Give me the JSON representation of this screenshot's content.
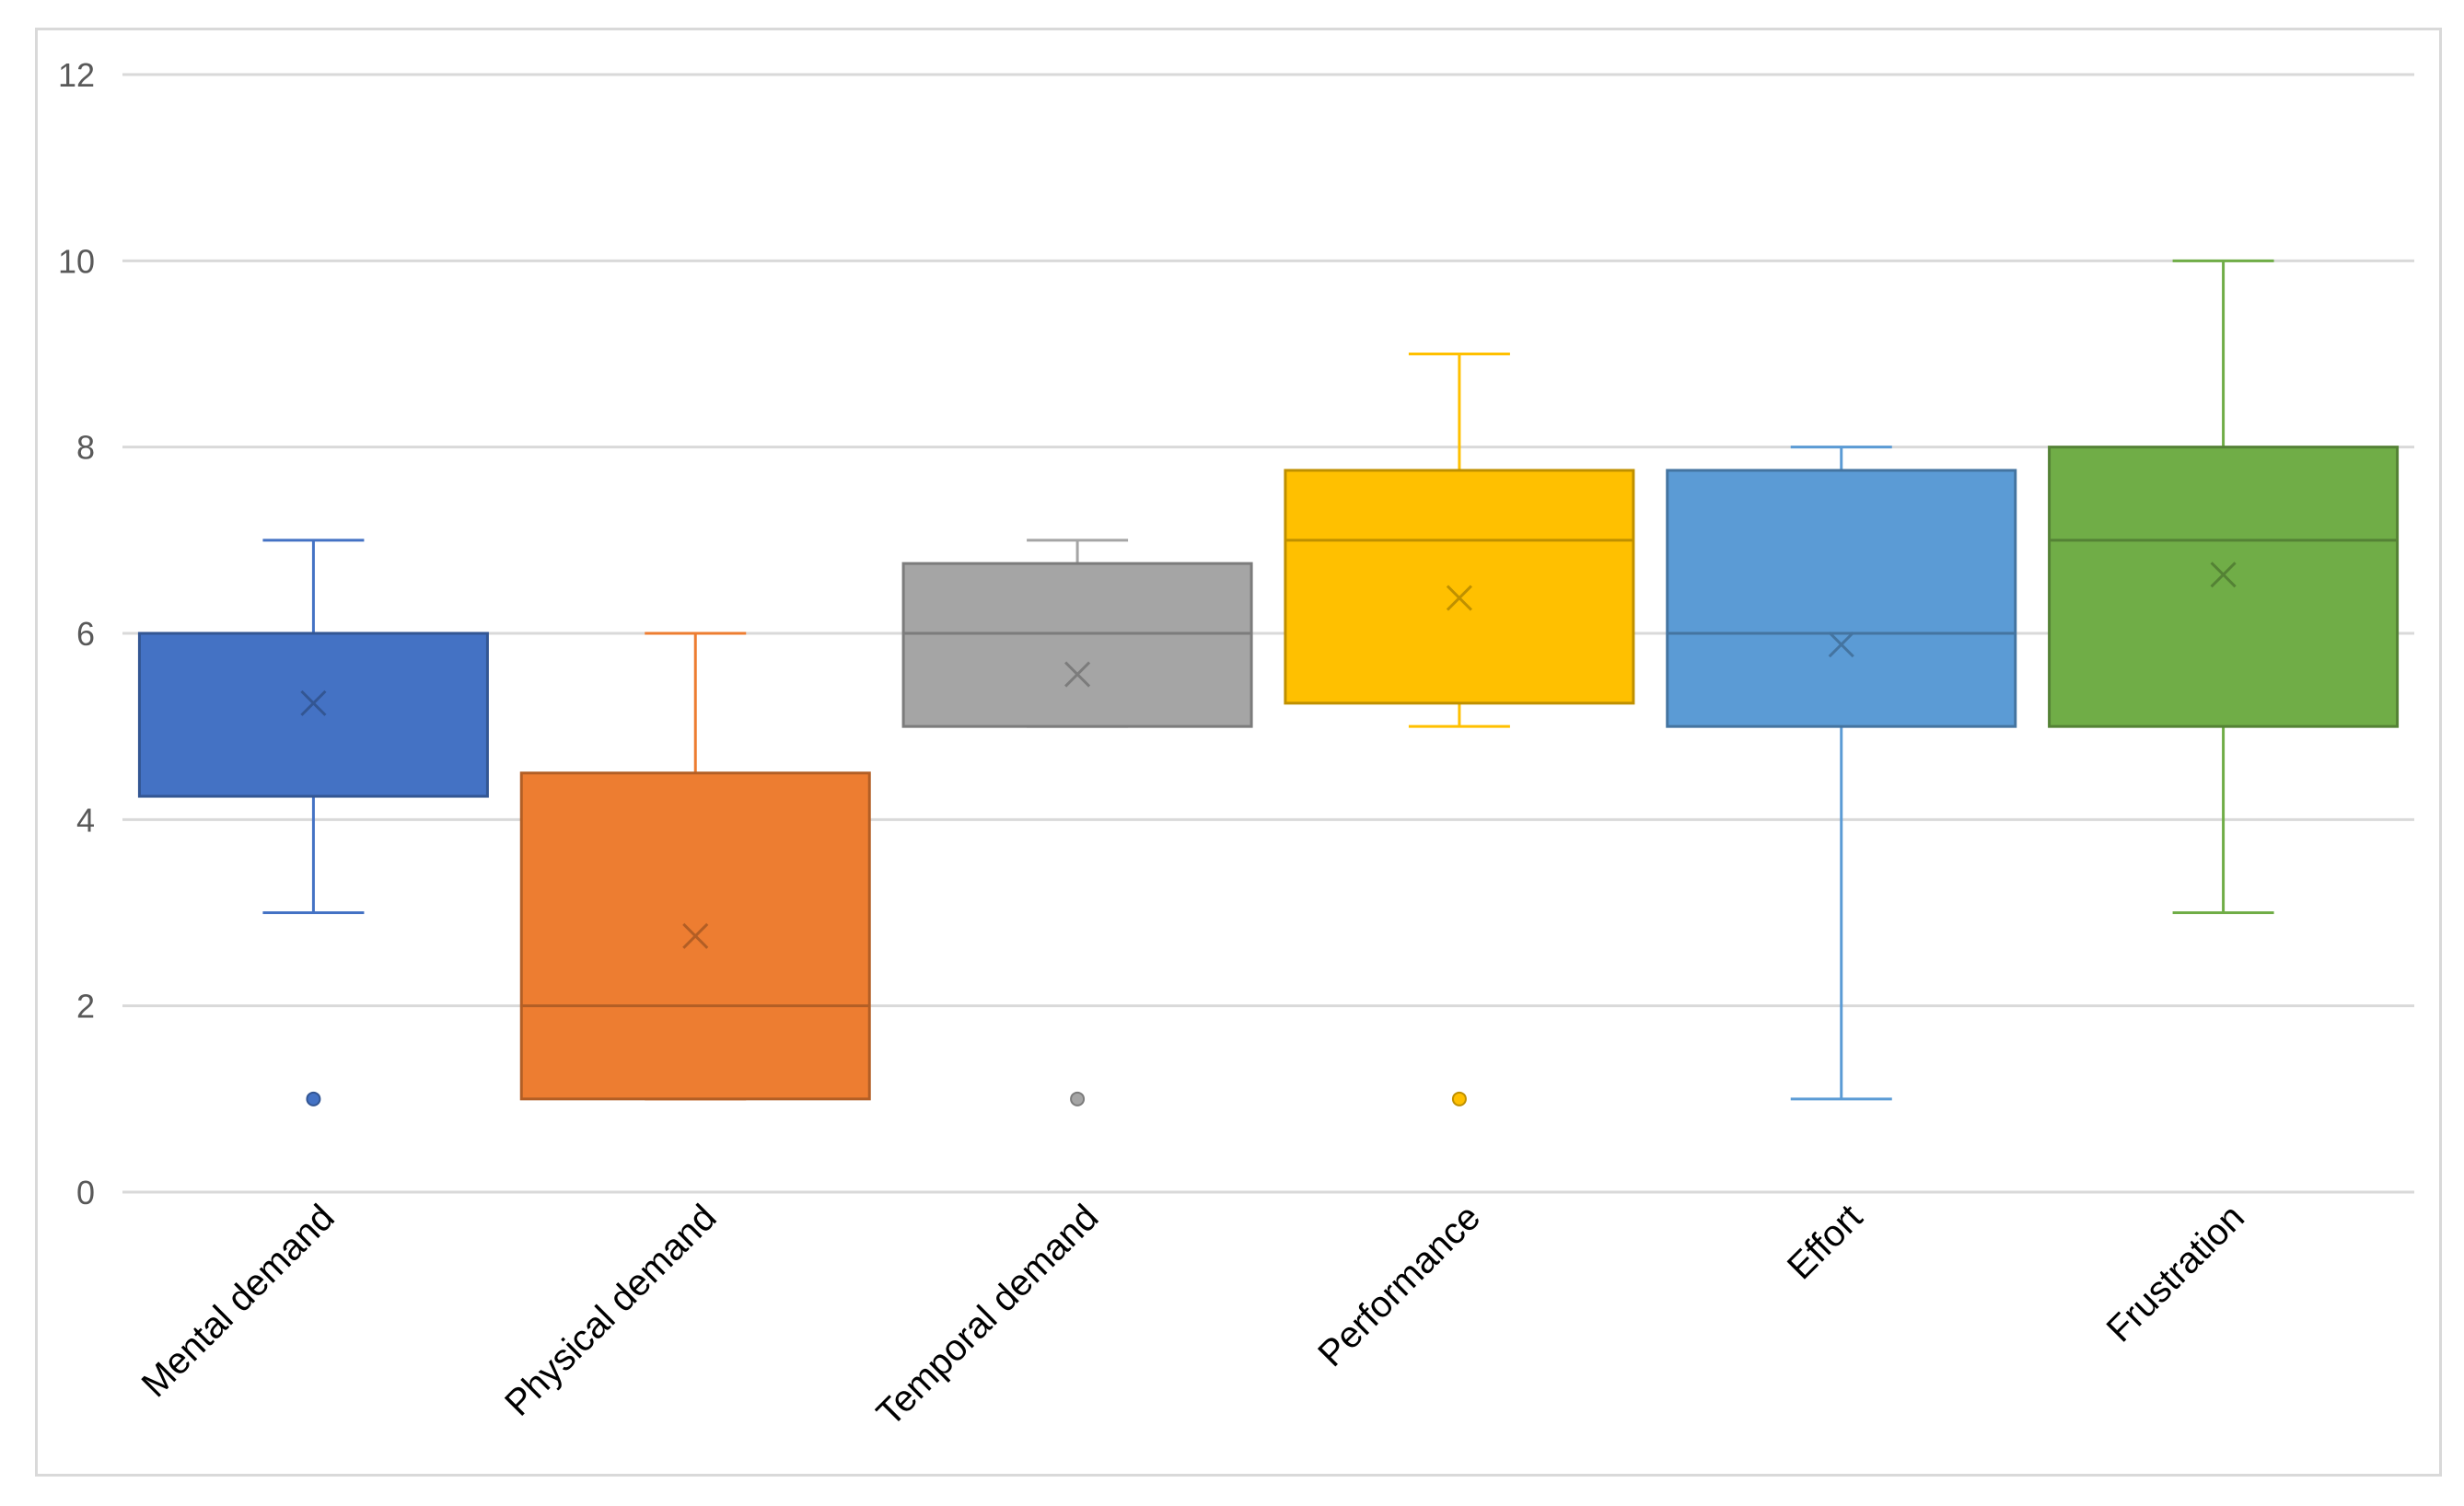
{
  "chart_data": {
    "type": "boxplot",
    "title": "",
    "xlabel": "",
    "ylabel": "",
    "ylim": [
      0,
      12
    ],
    "yticks": [
      0,
      2,
      4,
      6,
      8,
      10,
      12
    ],
    "grid": true,
    "legend": "none",
    "categories": [
      "Mental demand",
      "Physical demand",
      "Temporal demand",
      "Performance",
      "Effort",
      "Frustration"
    ],
    "series": [
      {
        "name": "Mental demand",
        "color": "#4472C4",
        "whisker_low": 3,
        "q1": 4.25,
        "median": 6,
        "q3": 6,
        "whisker_high": 7,
        "mean": 5.25,
        "outliers": [
          1
        ]
      },
      {
        "name": "Physical demand",
        "color": "#ED7D31",
        "whisker_low": 1,
        "q1": 1,
        "median": 2,
        "q3": 4.5,
        "whisker_high": 6,
        "mean": 2.75,
        "outliers": []
      },
      {
        "name": "Temporal demand",
        "color": "#A5A5A5",
        "whisker_low": 5,
        "q1": 5,
        "median": 6,
        "q3": 6.75,
        "whisker_high": 7,
        "mean": 5.56,
        "outliers": [
          1
        ]
      },
      {
        "name": "Performance",
        "color": "#FFC000",
        "whisker_low": 5,
        "q1": 5.25,
        "median": 7,
        "q3": 7.75,
        "whisker_high": 9,
        "mean": 6.38,
        "outliers": [
          1
        ]
      },
      {
        "name": "Effort",
        "color": "#5B9BD5",
        "whisker_low": 1,
        "q1": 5,
        "median": 6,
        "q3": 7.75,
        "whisker_high": 8,
        "mean": 5.88,
        "outliers": []
      },
      {
        "name": "Frustration",
        "color": "#70AD47",
        "whisker_low": 3,
        "q1": 5,
        "median": 7,
        "q3": 8,
        "whisker_high": 10,
        "mean": 6.63,
        "outliers": []
      }
    ]
  }
}
